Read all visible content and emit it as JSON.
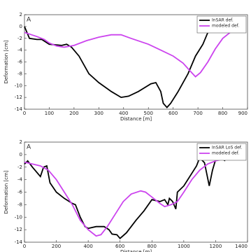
{
  "chart_data": [
    {
      "type": "line",
      "annotation": "A",
      "x_label": "Distance [m]",
      "y_label": "Deformation [cm]",
      "xlim": [
        0,
        900
      ],
      "xticks": [
        0,
        100,
        200,
        300,
        400,
        500,
        600,
        700,
        800,
        900
      ],
      "ylim": [
        -14,
        2
      ],
      "yticks": [
        2,
        0,
        -2,
        -4,
        -6,
        -8,
        -10,
        -12,
        -14
      ],
      "legend": "upper right",
      "series": [
        {
          "name": "InSAR def.",
          "color": "#000000",
          "x": [
            0,
            20,
            50,
            70,
            100,
            150,
            170,
            190,
            220,
            260,
            300,
            350,
            390,
            420,
            460,
            510,
            530,
            550,
            560,
            575,
            590,
            620,
            660,
            690,
            720,
            740,
            750
          ],
          "values": [
            0,
            -2,
            -2.2,
            -2.2,
            -3,
            -3.2,
            -3,
            -3.5,
            -5,
            -8,
            -9.5,
            -11,
            -12,
            -11.8,
            -11,
            -9.7,
            -9.5,
            -11,
            -13,
            -13.7,
            -13,
            -11,
            -8,
            -5,
            -3,
            -1,
            0
          ]
        },
        {
          "name": "modeled def.",
          "color": "#cc44ee",
          "x": [
            0,
            50,
            80,
            100,
            130,
            160,
            200,
            250,
            300,
            350,
            390,
            430,
            500,
            550,
            600,
            640,
            670,
            690,
            710,
            740,
            770,
            800,
            830
          ],
          "values": [
            -1,
            -1.7,
            -2.2,
            -2.8,
            -3.3,
            -3.5,
            -3.2,
            -2.4,
            -1.8,
            -1.4,
            -1.4,
            -2,
            -3,
            -4,
            -5,
            -6.2,
            -7.6,
            -8.5,
            -7.8,
            -6,
            -3.8,
            -2,
            -1
          ]
        }
      ]
    },
    {
      "type": "line",
      "annotation": "A",
      "x_label": "Distance [m]",
      "y_label": "Deformation [cm]",
      "xlim": [
        0,
        1400
      ],
      "xticks": [
        0,
        200,
        400,
        600,
        800,
        1000,
        1200,
        1400
      ],
      "ylim": [
        -14,
        2
      ],
      "yticks": [
        2,
        0,
        -2,
        -4,
        -6,
        -8,
        -10,
        -12,
        -14
      ],
      "legend": "upper right",
      "series": [
        {
          "name": "InSAR LoS def.",
          "color": "#000000",
          "x": [
            0,
            20,
            50,
            100,
            120,
            140,
            160,
            200,
            250,
            300,
            320,
            350,
            380,
            400,
            450,
            500,
            530,
            550,
            580,
            600,
            640,
            700,
            750,
            800,
            850,
            880,
            900,
            910,
            930,
            950,
            960,
            1000,
            1050,
            1080,
            1100,
            1130,
            1160,
            1180,
            1200,
            1230,
            1260
          ],
          "values": [
            -1.5,
            -1,
            -2,
            -3.5,
            -2,
            -1.8,
            -4.5,
            -6,
            -7,
            -7.8,
            -8,
            -10,
            -11.5,
            -11.8,
            -11.5,
            -11.5,
            -12,
            -12.7,
            -12.8,
            -13.4,
            -12.5,
            -10.5,
            -9,
            -7.2,
            -7.5,
            -7.2,
            -8,
            -7,
            -7.5,
            -8.7,
            -6,
            -5,
            -3,
            -1.8,
            -0.5,
            -1.3,
            -5,
            -2.5,
            -0.8,
            -0.5,
            -1
          ]
        },
        {
          "name": "modeled def.",
          "color": "#cc44ee",
          "x": [
            0,
            100,
            150,
            200,
            250,
            300,
            350,
            400,
            450,
            480,
            520,
            570,
            620,
            670,
            730,
            760,
            800,
            850,
            880,
            920,
            960,
            1000,
            1050,
            1100,
            1150,
            1200,
            1250,
            1290
          ],
          "values": [
            -1.2,
            -1.8,
            -2.5,
            -4,
            -6,
            -8,
            -10.5,
            -12,
            -13,
            -12.8,
            -11.5,
            -9.5,
            -7.5,
            -6.3,
            -5.8,
            -6,
            -6.8,
            -7.8,
            -8.3,
            -8,
            -7.5,
            -6,
            -4,
            -2.5,
            -1.5,
            -1,
            -0.7,
            -0.5
          ]
        }
      ]
    }
  ]
}
